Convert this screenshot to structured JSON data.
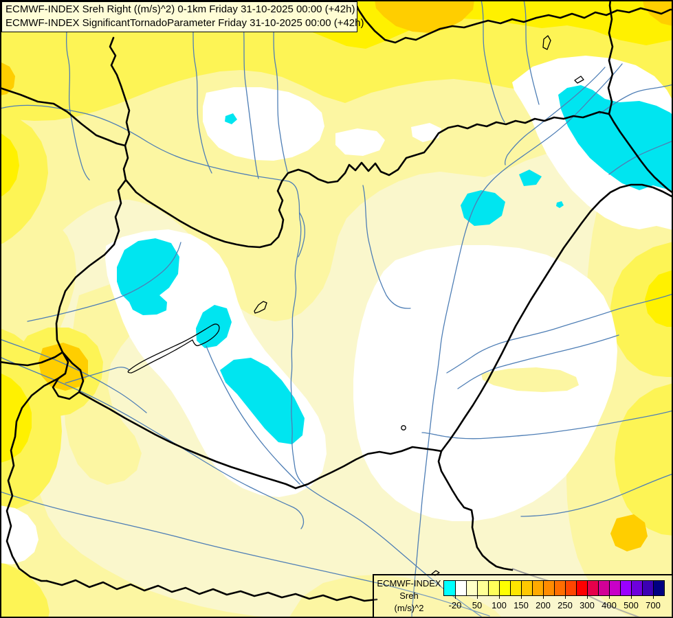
{
  "title": {
    "line1": "ECMWF-INDEX Sreh Right ((m/s)^2) 0-1km Friday 31-10-2025 00:00 (+42h)",
    "line2": "ECMWF-INDEX SignificantTornadoParameter Friday 31-10-2025 00:00 (+42h)"
  },
  "legend": {
    "title_line1": "ECMWF-INDEX",
    "title_line2": "Sreh",
    "title_line3": "(m/s)^2",
    "tick_labels": [
      "-20",
      "50",
      "100",
      "150",
      "200",
      "250",
      "300",
      "400",
      "500",
      "700"
    ],
    "cell_colors": [
      "#00FFFF",
      "#FFFFFF",
      "#FFFFC8",
      "#FFFF96",
      "#FFFF5A",
      "#FFFF00",
      "#FFE600",
      "#FFC800",
      "#FFAA00",
      "#FF8C00",
      "#FF6E00",
      "#FF4600",
      "#FF0000",
      "#E6004B",
      "#D20096",
      "#C800C8",
      "#9B00FF",
      "#6E00DC",
      "#3C00B4",
      "#000082"
    ]
  },
  "map": {
    "colors": {
      "base": "#FAF7CC",
      "pale_yellow": "#FCF6A2",
      "yellow": "#FDF455",
      "bright_yellow": "#FFF100",
      "gold": "#FFCE00",
      "white": "#FFFFFF",
      "cyan": "#00E5F0",
      "river": "#4E7EB5",
      "river_major": "#9A9A9A",
      "border": "#000000",
      "frame": "#000000"
    },
    "units": "(m/s)^2",
    "parameter": "Storm relative helicity 0-1km",
    "valid_time": "Friday 31-10-2025 00:00 (+42h)"
  }
}
